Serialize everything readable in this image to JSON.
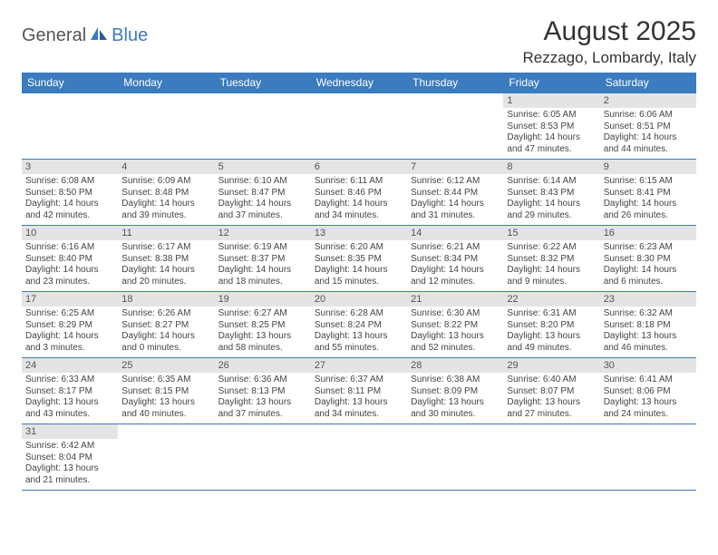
{
  "logo": {
    "text1": "General",
    "text2": "Blue"
  },
  "title": "August 2025",
  "location": "Rezzago, Lombardy, Italy",
  "colors": {
    "header_bg": "#3b7bbf",
    "header_text": "#ffffff",
    "daynum_bg": "#e4e4e4",
    "border": "#3b7bbf",
    "body_text": "#444444",
    "page_bg": "#ffffff"
  },
  "weekdays": [
    "Sunday",
    "Monday",
    "Tuesday",
    "Wednesday",
    "Thursday",
    "Friday",
    "Saturday"
  ],
  "weeks": [
    [
      {
        "n": "",
        "sr": "",
        "ss": "",
        "dl": ""
      },
      {
        "n": "",
        "sr": "",
        "ss": "",
        "dl": ""
      },
      {
        "n": "",
        "sr": "",
        "ss": "",
        "dl": ""
      },
      {
        "n": "",
        "sr": "",
        "ss": "",
        "dl": ""
      },
      {
        "n": "",
        "sr": "",
        "ss": "",
        "dl": ""
      },
      {
        "n": "1",
        "sr": "Sunrise: 6:05 AM",
        "ss": "Sunset: 8:53 PM",
        "dl": "Daylight: 14 hours and 47 minutes."
      },
      {
        "n": "2",
        "sr": "Sunrise: 6:06 AM",
        "ss": "Sunset: 8:51 PM",
        "dl": "Daylight: 14 hours and 44 minutes."
      }
    ],
    [
      {
        "n": "3",
        "sr": "Sunrise: 6:08 AM",
        "ss": "Sunset: 8:50 PM",
        "dl": "Daylight: 14 hours and 42 minutes."
      },
      {
        "n": "4",
        "sr": "Sunrise: 6:09 AM",
        "ss": "Sunset: 8:48 PM",
        "dl": "Daylight: 14 hours and 39 minutes."
      },
      {
        "n": "5",
        "sr": "Sunrise: 6:10 AM",
        "ss": "Sunset: 8:47 PM",
        "dl": "Daylight: 14 hours and 37 minutes."
      },
      {
        "n": "6",
        "sr": "Sunrise: 6:11 AM",
        "ss": "Sunset: 8:46 PM",
        "dl": "Daylight: 14 hours and 34 minutes."
      },
      {
        "n": "7",
        "sr": "Sunrise: 6:12 AM",
        "ss": "Sunset: 8:44 PM",
        "dl": "Daylight: 14 hours and 31 minutes."
      },
      {
        "n": "8",
        "sr": "Sunrise: 6:14 AM",
        "ss": "Sunset: 8:43 PM",
        "dl": "Daylight: 14 hours and 29 minutes."
      },
      {
        "n": "9",
        "sr": "Sunrise: 6:15 AM",
        "ss": "Sunset: 8:41 PM",
        "dl": "Daylight: 14 hours and 26 minutes."
      }
    ],
    [
      {
        "n": "10",
        "sr": "Sunrise: 6:16 AM",
        "ss": "Sunset: 8:40 PM",
        "dl": "Daylight: 14 hours and 23 minutes."
      },
      {
        "n": "11",
        "sr": "Sunrise: 6:17 AM",
        "ss": "Sunset: 8:38 PM",
        "dl": "Daylight: 14 hours and 20 minutes."
      },
      {
        "n": "12",
        "sr": "Sunrise: 6:19 AM",
        "ss": "Sunset: 8:37 PM",
        "dl": "Daylight: 14 hours and 18 minutes."
      },
      {
        "n": "13",
        "sr": "Sunrise: 6:20 AM",
        "ss": "Sunset: 8:35 PM",
        "dl": "Daylight: 14 hours and 15 minutes."
      },
      {
        "n": "14",
        "sr": "Sunrise: 6:21 AM",
        "ss": "Sunset: 8:34 PM",
        "dl": "Daylight: 14 hours and 12 minutes."
      },
      {
        "n": "15",
        "sr": "Sunrise: 6:22 AM",
        "ss": "Sunset: 8:32 PM",
        "dl": "Daylight: 14 hours and 9 minutes."
      },
      {
        "n": "16",
        "sr": "Sunrise: 6:23 AM",
        "ss": "Sunset: 8:30 PM",
        "dl": "Daylight: 14 hours and 6 minutes."
      }
    ],
    [
      {
        "n": "17",
        "sr": "Sunrise: 6:25 AM",
        "ss": "Sunset: 8:29 PM",
        "dl": "Daylight: 14 hours and 3 minutes."
      },
      {
        "n": "18",
        "sr": "Sunrise: 6:26 AM",
        "ss": "Sunset: 8:27 PM",
        "dl": "Daylight: 14 hours and 0 minutes."
      },
      {
        "n": "19",
        "sr": "Sunrise: 6:27 AM",
        "ss": "Sunset: 8:25 PM",
        "dl": "Daylight: 13 hours and 58 minutes."
      },
      {
        "n": "20",
        "sr": "Sunrise: 6:28 AM",
        "ss": "Sunset: 8:24 PM",
        "dl": "Daylight: 13 hours and 55 minutes."
      },
      {
        "n": "21",
        "sr": "Sunrise: 6:30 AM",
        "ss": "Sunset: 8:22 PM",
        "dl": "Daylight: 13 hours and 52 minutes."
      },
      {
        "n": "22",
        "sr": "Sunrise: 6:31 AM",
        "ss": "Sunset: 8:20 PM",
        "dl": "Daylight: 13 hours and 49 minutes."
      },
      {
        "n": "23",
        "sr": "Sunrise: 6:32 AM",
        "ss": "Sunset: 8:18 PM",
        "dl": "Daylight: 13 hours and 46 minutes."
      }
    ],
    [
      {
        "n": "24",
        "sr": "Sunrise: 6:33 AM",
        "ss": "Sunset: 8:17 PM",
        "dl": "Daylight: 13 hours and 43 minutes."
      },
      {
        "n": "25",
        "sr": "Sunrise: 6:35 AM",
        "ss": "Sunset: 8:15 PM",
        "dl": "Daylight: 13 hours and 40 minutes."
      },
      {
        "n": "26",
        "sr": "Sunrise: 6:36 AM",
        "ss": "Sunset: 8:13 PM",
        "dl": "Daylight: 13 hours and 37 minutes."
      },
      {
        "n": "27",
        "sr": "Sunrise: 6:37 AM",
        "ss": "Sunset: 8:11 PM",
        "dl": "Daylight: 13 hours and 34 minutes."
      },
      {
        "n": "28",
        "sr": "Sunrise: 6:38 AM",
        "ss": "Sunset: 8:09 PM",
        "dl": "Daylight: 13 hours and 30 minutes."
      },
      {
        "n": "29",
        "sr": "Sunrise: 6:40 AM",
        "ss": "Sunset: 8:07 PM",
        "dl": "Daylight: 13 hours and 27 minutes."
      },
      {
        "n": "30",
        "sr": "Sunrise: 6:41 AM",
        "ss": "Sunset: 8:06 PM",
        "dl": "Daylight: 13 hours and 24 minutes."
      }
    ],
    [
      {
        "n": "31",
        "sr": "Sunrise: 6:42 AM",
        "ss": "Sunset: 8:04 PM",
        "dl": "Daylight: 13 hours and 21 minutes."
      },
      {
        "n": "",
        "sr": "",
        "ss": "",
        "dl": ""
      },
      {
        "n": "",
        "sr": "",
        "ss": "",
        "dl": ""
      },
      {
        "n": "",
        "sr": "",
        "ss": "",
        "dl": ""
      },
      {
        "n": "",
        "sr": "",
        "ss": "",
        "dl": ""
      },
      {
        "n": "",
        "sr": "",
        "ss": "",
        "dl": ""
      },
      {
        "n": "",
        "sr": "",
        "ss": "",
        "dl": ""
      }
    ]
  ]
}
